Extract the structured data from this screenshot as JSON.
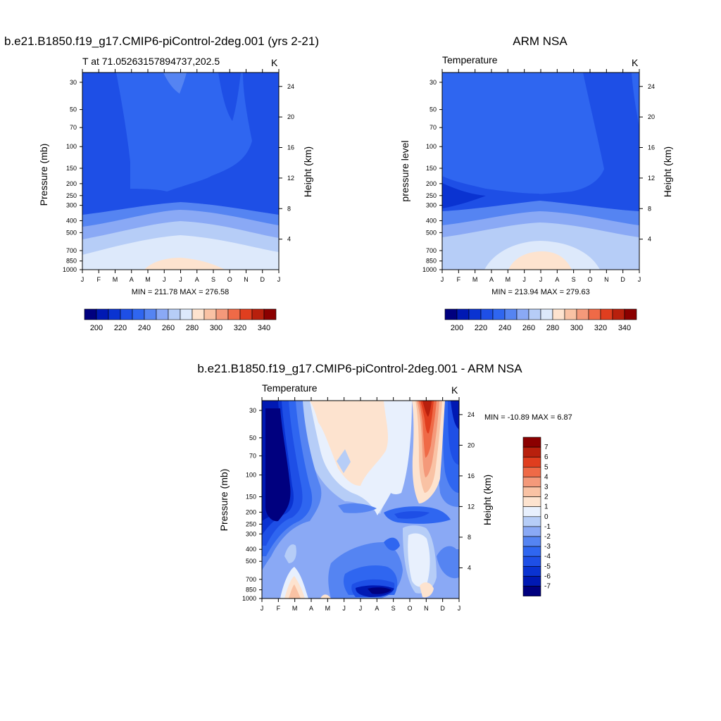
{
  "panels": {
    "top_left": {
      "title": "b.e21.B1850.f19_g17.CMIP6-piControl-2deg.001 (yrs 2-21)",
      "left_string": "T at 71.05263157894737,202.5",
      "right_string": "K",
      "ylabel": "Pressure (mb)",
      "ylabel_right": "Height (km)",
      "minmax": "MIN = 211.78 MAX = 276.58"
    },
    "top_right": {
      "title": "ARM NSA",
      "left_string": "Temperature",
      "right_string": "K",
      "ylabel": "pressure level",
      "ylabel_right": "Height (km)",
      "minmax": "MIN = 213.94 MAX = 279.63"
    },
    "bottom": {
      "title": "b.e21.B1850.f19_g17.CMIP6-piControl-2deg.001 - ARM NSA",
      "left_string": "Temperature",
      "right_string": "K",
      "ylabel": "Pressure (mb)",
      "ylabel_right": "Height (km)",
      "minmax": "MIN = -10.89 MAX =   6.87"
    }
  },
  "chart_data": [
    {
      "type": "heatmap",
      "title": "b.e21.B1850.f19_g17.CMIP6-piControl-2deg.001 (yrs 2-21)",
      "subtitle": "T at 71.05263157894737,202.5",
      "units": "K",
      "xlabel": "",
      "ylabel": "Pressure (mb)",
      "ylabel_right": "Height (km)",
      "x_ticks": [
        "J",
        "F",
        "M",
        "A",
        "M",
        "J",
        "J",
        "A",
        "S",
        "O",
        "N",
        "D",
        "J"
      ],
      "y_ticks": [
        "30",
        "50",
        "70",
        "100",
        "150",
        "200",
        "250",
        "300",
        "400",
        "500",
        "700",
        "850",
        "1000"
      ],
      "y_ticks_right": [
        "24",
        "20",
        "16",
        "12",
        "8",
        "4"
      ],
      "y_scale": "log",
      "ylim": [
        1000,
        25
      ],
      "color_levels": [
        200,
        210,
        220,
        230,
        240,
        250,
        260,
        270,
        280,
        290,
        300,
        310,
        320,
        330,
        340
      ],
      "colorbar_labels": [
        "200",
        "220",
        "240",
        "260",
        "280",
        "300",
        "320",
        "340"
      ],
      "min": 211.78,
      "max": 276.58
    },
    {
      "type": "heatmap",
      "title": "ARM NSA",
      "subtitle": "Temperature",
      "units": "K",
      "xlabel": "",
      "ylabel": "pressure level",
      "ylabel_right": "Height (km)",
      "x_ticks": [
        "J",
        "F",
        "M",
        "A",
        "M",
        "J",
        "J",
        "A",
        "S",
        "O",
        "N",
        "D",
        "J"
      ],
      "y_ticks": [
        "30",
        "50",
        "70",
        "100",
        "150",
        "200",
        "250",
        "300",
        "400",
        "500",
        "700",
        "850",
        "1000"
      ],
      "y_ticks_right": [
        "24",
        "20",
        "16",
        "12",
        "8",
        "4"
      ],
      "y_scale": "log",
      "ylim": [
        1000,
        25
      ],
      "color_levels": [
        200,
        210,
        220,
        230,
        240,
        250,
        260,
        270,
        280,
        290,
        300,
        310,
        320,
        330,
        340
      ],
      "colorbar_labels": [
        "200",
        "220",
        "240",
        "260",
        "280",
        "300",
        "320",
        "340"
      ],
      "min": 213.94,
      "max": 279.63
    },
    {
      "type": "heatmap",
      "title": "b.e21.B1850.f19_g17.CMIP6-piControl-2deg.001 - ARM NSA",
      "subtitle": "Temperature",
      "units": "K",
      "xlabel": "",
      "ylabel": "Pressure (mb)",
      "ylabel_right": "Height (km)",
      "x_ticks": [
        "J",
        "F",
        "M",
        "A",
        "M",
        "J",
        "J",
        "A",
        "S",
        "O",
        "N",
        "D",
        "J"
      ],
      "y_ticks": [
        "30",
        "50",
        "70",
        "100",
        "150",
        "200",
        "250",
        "300",
        "400",
        "500",
        "700",
        "850",
        "1000"
      ],
      "y_ticks_right": [
        "24",
        "20",
        "16",
        "12",
        "8",
        "4"
      ],
      "y_scale": "log",
      "ylim": [
        1000,
        25
      ],
      "color_levels": [
        -7,
        -6,
        -5,
        -4,
        -3,
        -2,
        -1,
        0,
        1,
        2,
        3,
        4,
        5,
        6,
        7
      ],
      "colorbar_labels": [
        "7",
        "6",
        "5",
        "4",
        "3",
        "2",
        "1",
        "0",
        "-1",
        "-2",
        "-3",
        "-4",
        "-5",
        "-6",
        "-7"
      ],
      "min": -10.89,
      "max": 6.87
    }
  ],
  "colors": {
    "abs_palette": [
      "#00007f",
      "#0019b3",
      "#0a33d1",
      "#1e4fe6",
      "#2f66f0",
      "#5584f2",
      "#8aa9f5",
      "#b6cdf7",
      "#dde9fb",
      "#fde3cf",
      "#f9c2a4",
      "#f4997a",
      "#ef6a47",
      "#e03e1f",
      "#b8200d",
      "#8b0000"
    ],
    "diff_palette": [
      "#00007f",
      "#0019b3",
      "#0a33d1",
      "#1e4fe6",
      "#2f66f0",
      "#5584f2",
      "#8aa9f5",
      "#b6cdf7",
      "#e8f0fd",
      "#fde3cf",
      "#f9c2a4",
      "#f4997a",
      "#ef6a47",
      "#e03e1f",
      "#b8200d",
      "#8b0000"
    ]
  }
}
